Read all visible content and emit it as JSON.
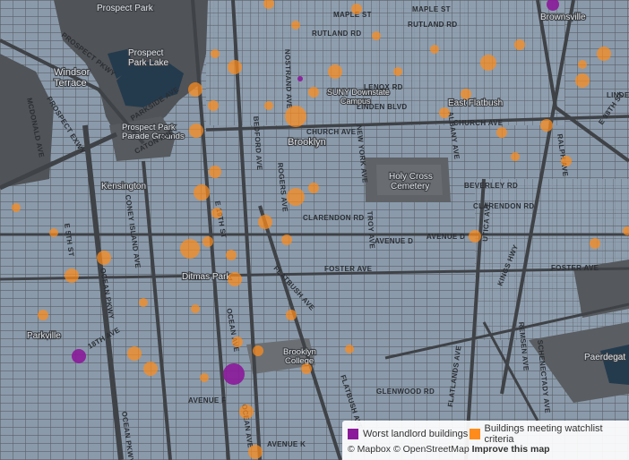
{
  "map": {
    "colors": {
      "land": "#8a9aab",
      "park": "#505357",
      "water": "#243b4e",
      "road": "#45484c",
      "watchlist": "#ff8c1a",
      "worst": "#8b1a9a"
    },
    "places": {
      "prospect_park": "Prospect Park",
      "prospect_park_lake": "Prospect\nPark Lake",
      "windsor_terrace": "Windsor\nTerrace",
      "parade_grounds": "Prospect Park\nParade Grounds",
      "kensington": "Kensington",
      "ditmas_park": "Ditmas Park",
      "brooklyn": "Brooklyn",
      "holy_cross": "Holy Cross\nCemetery",
      "brownsville": "Brownsville",
      "parkville": "Parkville",
      "brooklyn_college": "Brooklyn\nCollege",
      "paerdegat": "Paerdegat",
      "east_flatbush": "East Flatbush",
      "suny_downstate": "SUNY Downstate\nCampus"
    },
    "streets": {
      "maple_st_w": "MAPLE ST",
      "maple_st_e": "MAPLE ST",
      "rutland_rd_w": "RUTLAND RD",
      "rutland_rd_e": "RUTLAND RD",
      "lenox_rd": "LENOX RD",
      "linden_blvd": "LINDEN BLVD",
      "linden_e": "LINDE",
      "church_ave": "CHURCH AVE",
      "beverley_rd": "BEVERLEY RD",
      "clarendon_rd_w": "CLARENDON RD",
      "clarendon_rd_e": "CLARENDON RD",
      "avenue_d": "AVENUE D",
      "avenue_d_e": "AVENUE D",
      "foster_ave_w": "FOSTER AVE",
      "foster_ave_e": "FOSTER AVE",
      "avenue_k": "AVENUE K",
      "parkside_ave": "PARKSIDE AVE",
      "prospect_pkwy": "PROSPECT PKWY",
      "prospect_exwy": "PROSPECT EXWY",
      "ocean_pkwy": "OCEAN PKWY",
      "ocean_ave": "OCEAN AVE",
      "bedford_ave": "BEDFORD AVE",
      "flatbush_ave_w": "FLATBUSH AVE",
      "flatbush_ave_e": "FLATBUSH AVE",
      "utica_ave": "UTICA AVE",
      "kings_hwy": "KINGS HWY",
      "nostrand_ave": "NOSTRAND AVE",
      "rogers_ave": "ROGERS AVE",
      "coney_island_ave": "CONEY ISLAND AVE",
      "mcdonald_ave": "MCDONALD AVE",
      "caton_ave": "CATON AVE",
      "ralph_ave": "RALPH AVE",
      "troy_ave": "TROY AVE",
      "new_york_ave": "NEW YORK AVE",
      "remsen_ave": "REMSEN AVE",
      "e_98th_st": "E 98TH ST",
      "18th_ave": "18TH AVE",
      "glenwood_rd": "GLENWOOD RD",
      "avenue_f": "AVENUE F",
      "albany_ave": "ALBANY AVE",
      "east_19th": "E 19TH ST",
      "church_ave_e": "CHURCH AVE",
      "e_5th_st": "E 5TH ST",
      "schenectady_ave": "SCHENECTADY AVE",
      "flatlands_ave": "FLATLANDS AVE"
    }
  },
  "legend": {
    "worst_label": "Worst landlord buildings",
    "watchlist_label": "Buildings meeting watchlist criteria",
    "attribution_mapbox": "© Mapbox",
    "attribution_osm": "© OpenStreetMap",
    "attribution_improve": "Improve this map"
  }
}
